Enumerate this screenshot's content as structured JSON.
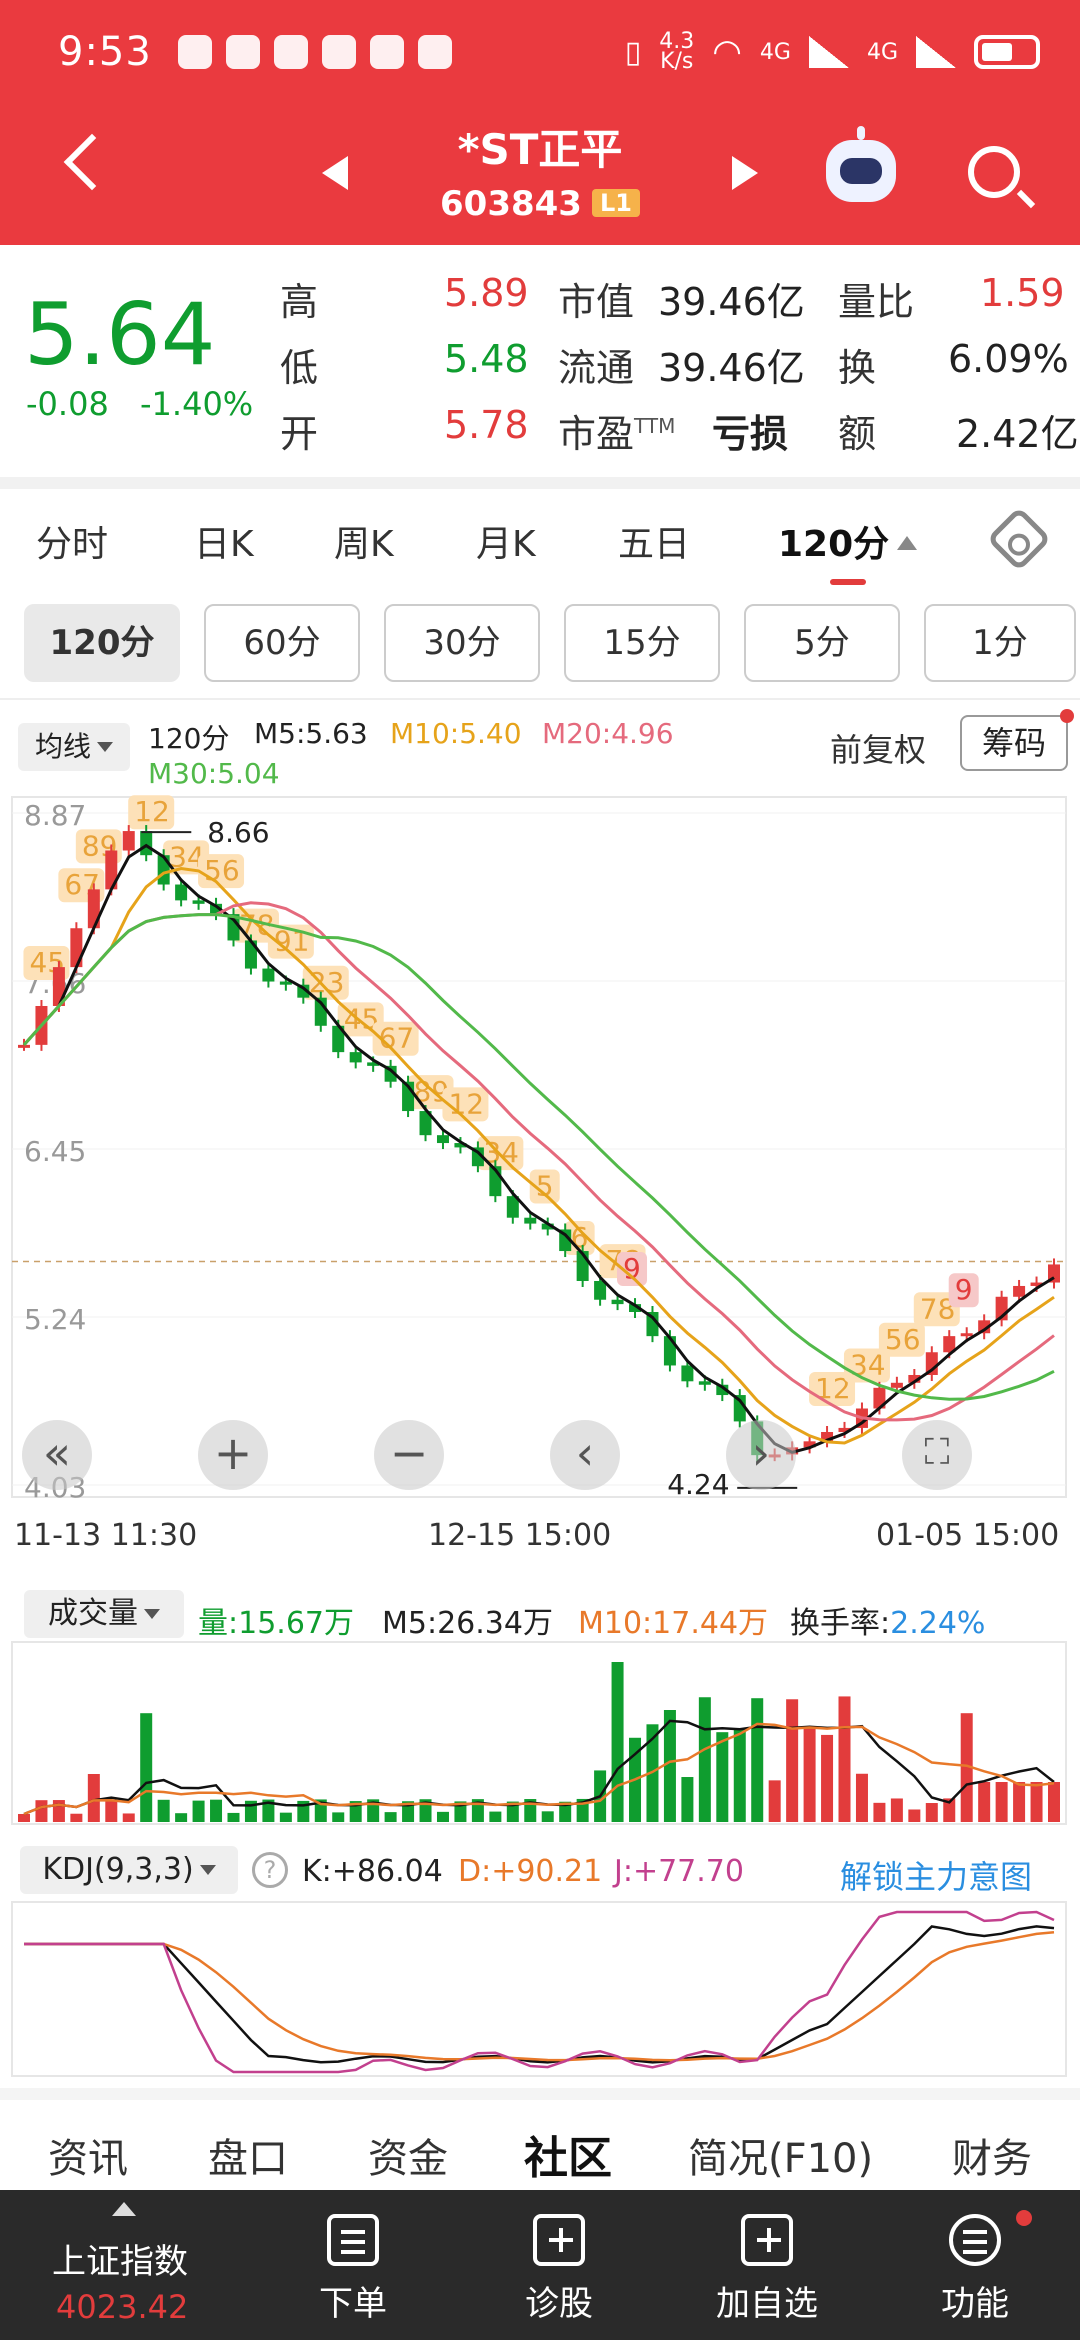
{
  "status_bar": {
    "time": "9:53",
    "net_speed_top": "4.3",
    "net_speed_bottom": "K/s",
    "sig1": "4G",
    "sig2": "4G"
  },
  "header": {
    "title": "*ST正平",
    "code": "603843",
    "level_badge": "L1"
  },
  "quote": {
    "price": "5.64",
    "change": "-0.08",
    "change_pct": "-1.40%",
    "high_label": "高",
    "high": "5.89",
    "low_label": "低",
    "low": "5.48",
    "open_label": "开",
    "open": "5.78",
    "mcap_label": "市值",
    "mcap": "39.46亿",
    "float_label": "流通",
    "float": "39.46亿",
    "pe_label": "市盈",
    "pe_tm": "TTM",
    "pe": "亏损",
    "vr_label": "量比",
    "vr": "1.59",
    "turn_label": "换",
    "turn": "6.09%",
    "amt_label": "额",
    "amt": "2.42亿"
  },
  "period_tabs": [
    "分时",
    "日K",
    "周K",
    "月K",
    "五日",
    "120分"
  ],
  "minute_buttons": [
    "120分",
    "60分",
    "30分",
    "15分",
    "5分",
    "1分"
  ],
  "ma_legend": {
    "type": "均线",
    "period": "120分",
    "m5": "M5:5.63",
    "m10": "M10:5.40",
    "m20": "M20:4.96",
    "m30": "M30:5.04",
    "adj": "前复权",
    "chips": "筹码"
  },
  "chart_data": {
    "type": "line",
    "y_ticks": [
      "8.87",
      "7.66",
      "6.45",
      "5.24",
      "4.03"
    ],
    "x_ticks": [
      "11-13 11:30",
      "12-15 15:00",
      "01-05 15:00"
    ],
    "annotations": {
      "high": "8.66",
      "low": "4.24"
    },
    "td_labels": [
      "45",
      "67",
      "89",
      "12",
      "34",
      "56",
      "78",
      "91",
      "23",
      "45",
      "67",
      "89",
      "12",
      "34",
      "5",
      "6",
      "78",
      "9",
      "12",
      "34",
      "56",
      "78",
      "9"
    ],
    "ylim": [
      4.03,
      8.87
    ],
    "series": [
      {
        "name": "M5",
        "color": "#111111"
      },
      {
        "name": "M10",
        "color": "#e6a31a"
      },
      {
        "name": "M20",
        "color": "#e56a7d"
      },
      {
        "name": "M30",
        "color": "#52b94a"
      }
    ]
  },
  "volume": {
    "type": "成交量",
    "vol": "量:15.67万",
    "m5": "M5:26.34万",
    "m10": "M10:17.44万",
    "turnover_label": "换手率:",
    "turnover": "2.24%"
  },
  "kdj": {
    "type": "KDJ(9,3,3)",
    "k": "K:+86.04",
    "d": "D:+90.21",
    "j": "J:+77.70",
    "unlock": "解锁主力意图"
  },
  "info_tabs": [
    "资讯",
    "盘口",
    "资金",
    "社区",
    "简况(F10)",
    "财务"
  ],
  "bottom_bar": {
    "index_name": "上证指数",
    "index_value": "4023.42",
    "items": [
      "下单",
      "诊股",
      "加自选",
      "功能"
    ]
  },
  "colors": {
    "red": "#ea3a3f",
    "green": "#0f9d2f",
    "orange": "#e6a31a",
    "pink": "#e56a7d"
  }
}
